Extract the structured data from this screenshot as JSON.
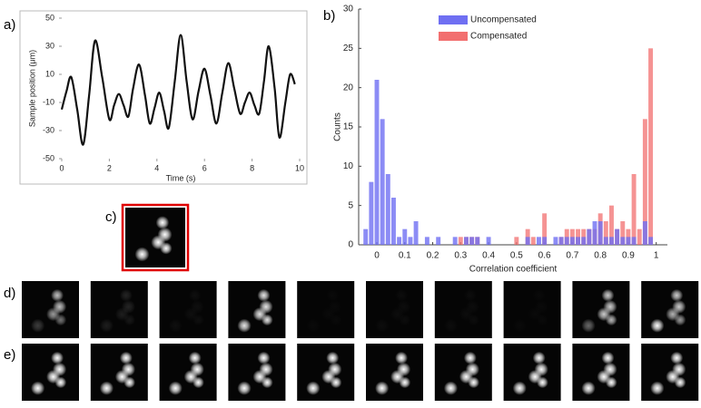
{
  "panel_labels": [
    "a)",
    "b)",
    "c)",
    "d)",
    "e)"
  ],
  "chart_data": [
    {
      "type": "line",
      "xlabel": "Time (s)",
      "ylabel": "Sample position (μm)",
      "color": "#111111",
      "x": [
        0,
        0.2,
        0.4,
        0.65,
        0.9,
        1.15,
        1.4,
        1.7,
        2.0,
        2.2,
        2.4,
        2.6,
        2.8,
        3.0,
        3.25,
        3.5,
        3.7,
        3.9,
        4.1,
        4.3,
        4.5,
        4.75,
        5.0,
        5.25,
        5.5,
        5.75,
        6.0,
        6.25,
        6.5,
        6.75,
        7.0,
        7.25,
        7.5,
        7.7,
        7.9,
        8.1,
        8.3,
        8.5,
        8.7,
        8.95,
        9.15,
        9.4,
        9.6,
        9.8
      ],
      "values": [
        -15,
        -2,
        8,
        -15,
        -40,
        -5,
        34,
        8,
        -22,
        -12,
        -4,
        -12,
        -20,
        0,
        17,
        -5,
        -25,
        -14,
        -3,
        -16,
        -28,
        5,
        38,
        5,
        -22,
        -2,
        14,
        -5,
        -25,
        -3,
        18,
        0,
        -18,
        -10,
        -3,
        -12,
        -18,
        5,
        30,
        0,
        -35,
        -10,
        10,
        3
      ],
      "xlim": [
        0,
        10
      ],
      "xticks": [
        0,
        2,
        4,
        6,
        8,
        10
      ],
      "ylim": [
        -50,
        50
      ],
      "yticks": [
        -50,
        -30,
        -10,
        10,
        30,
        50
      ]
    },
    {
      "type": "histogram",
      "xlabel": "Correlation coefficient",
      "ylabel": "Counts",
      "legend": "top",
      "bins": [
        -0.05,
        -0.03,
        -0.01,
        0.01,
        0.03,
        0.05,
        0.07,
        0.09,
        0.11,
        0.13,
        0.15,
        0.17,
        0.19,
        0.21,
        0.23,
        0.25,
        0.27,
        0.29,
        0.31,
        0.33,
        0.35,
        0.37,
        0.39,
        0.41,
        0.43,
        0.45,
        0.47,
        0.49,
        0.51,
        0.53,
        0.55,
        0.57,
        0.59,
        0.61,
        0.63,
        0.65,
        0.67,
        0.69,
        0.71,
        0.73,
        0.75,
        0.77,
        0.79,
        0.81,
        0.83,
        0.85,
        0.87,
        0.89,
        0.91,
        0.93,
        0.95,
        0.97,
        0.99,
        1.01
      ],
      "series": [
        {
          "name": "Uncompensated",
          "color": "#6f6ff2",
          "values": [
            2,
            8,
            21,
            16,
            9,
            6,
            1,
            2,
            1,
            3,
            0,
            1,
            0,
            1,
            0,
            0,
            1,
            0,
            1,
            1,
            1,
            0,
            1,
            0,
            0,
            0,
            0,
            0,
            0,
            1,
            0,
            1,
            1,
            0,
            1,
            1,
            1,
            1,
            1,
            1,
            2,
            3,
            3,
            1,
            1,
            2,
            1,
            1,
            1,
            0,
            3,
            1,
            0
          ]
        },
        {
          "name": "Compensated",
          "color": "#f26f6f",
          "values": [
            0,
            0,
            0,
            0,
            0,
            0,
            0,
            0,
            0,
            0,
            0,
            0,
            0,
            0,
            0,
            0,
            0,
            1,
            1,
            1,
            1,
            0,
            0,
            0,
            0,
            0,
            0,
            1,
            0,
            2,
            1,
            0,
            4,
            0,
            0,
            1,
            2,
            2,
            2,
            2,
            2,
            2,
            4,
            3,
            5,
            2,
            3,
            2,
            9,
            2,
            16,
            25,
            0
          ]
        }
      ],
      "xlim": [
        -0.065,
        1.04
      ],
      "xticks": [
        0,
        0.1,
        0.2,
        0.3,
        0.4,
        0.5,
        0.6,
        0.7,
        0.8,
        0.9,
        1
      ],
      "ylim": [
        0,
        30
      ],
      "yticks": [
        0,
        5,
        10,
        15,
        20,
        25,
        30
      ]
    }
  ]
}
